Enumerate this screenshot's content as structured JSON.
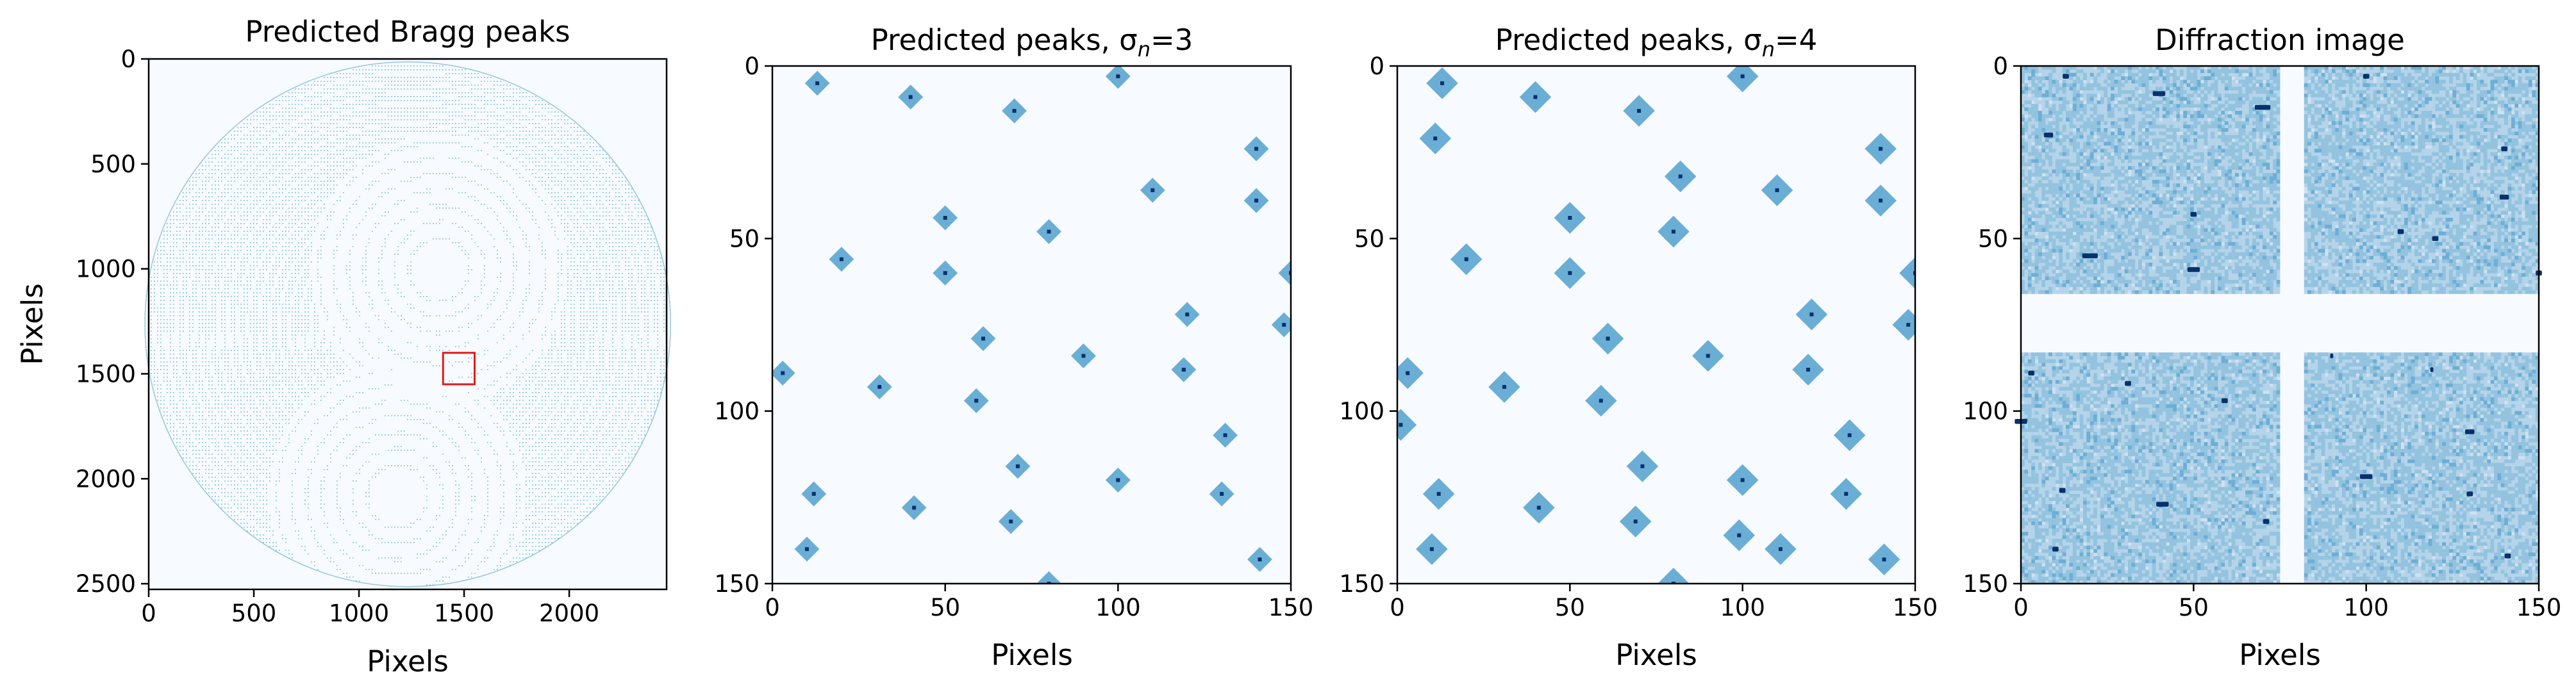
{
  "figure": {
    "background_color": "#f7fbff",
    "colormap": "Blues",
    "panel_fill": "#f7fbff",
    "peak_fill": "#6aaed6",
    "peak_center": "#08306b",
    "roi_color": "#e31a1c"
  },
  "chart_data": [
    {
      "type": "scatter",
      "title": "Predicted Bragg peaks",
      "xlabel": "Pixels",
      "ylabel": "Pixels",
      "xlim": [
        0,
        2463
      ],
      "ylim": [
        2527,
        0
      ],
      "xticks": [
        0,
        500,
        1000,
        1500,
        2000
      ],
      "yticks": [
        0,
        500,
        1000,
        1500,
        2000,
        2500
      ],
      "xtick_labels": [
        "0",
        "500",
        "1000",
        "1500",
        "2000"
      ],
      "ytick_labels": [
        "0",
        "500",
        "1000",
        "1500",
        "2000",
        "2500"
      ],
      "detector_circle": {
        "cx": 1232,
        "cy": 1264,
        "r": 1250
      },
      "ring_centers": [
        {
          "x": 1380,
          "y": 1000
        },
        {
          "x": 1180,
          "y": 2080
        }
      ],
      "highlight_box": {
        "x": [
          1400,
          1550
        ],
        "y": [
          1400,
          1550
        ]
      }
    },
    {
      "type": "heatmap",
      "title": "Predicted peaks, σ",
      "title_sub": "n",
      "title_suffix": "=3",
      "xlabel": "Pixels",
      "ylabel": "",
      "xlim": [
        0,
        150
      ],
      "ylim": [
        150,
        0
      ],
      "xticks": [
        0,
        50,
        100,
        150
      ],
      "yticks": [
        0,
        50,
        100,
        150
      ],
      "xtick_labels": [
        "0",
        "50",
        "100",
        "150"
      ],
      "ytick_labels": [
        "0",
        "50",
        "100",
        "150"
      ],
      "sigma_n": 3,
      "peaks": [
        [
          13,
          5
        ],
        [
          40,
          9
        ],
        [
          70,
          13
        ],
        [
          100,
          3
        ],
        [
          140,
          24
        ],
        [
          50,
          44
        ],
        [
          80,
          48
        ],
        [
          110,
          36
        ],
        [
          140,
          39
        ],
        [
          20,
          56
        ],
        [
          50,
          60
        ],
        [
          120,
          72
        ],
        [
          150,
          60
        ],
        [
          61,
          79
        ],
        [
          90,
          84
        ],
        [
          148,
          75
        ],
        [
          3,
          89
        ],
        [
          31,
          93
        ],
        [
          59,
          97
        ],
        [
          119,
          88
        ],
        [
          131,
          107
        ],
        [
          71,
          116
        ],
        [
          100,
          120
        ],
        [
          12,
          124
        ],
        [
          41,
          128
        ],
        [
          69,
          132
        ],
        [
          130,
          124
        ],
        [
          10,
          140
        ],
        [
          141,
          143
        ],
        [
          80,
          150
        ]
      ]
    },
    {
      "type": "heatmap",
      "title": "Predicted peaks, σ",
      "title_sub": "n",
      "title_suffix": "=4",
      "xlabel": "Pixels",
      "ylabel": "",
      "xlim": [
        0,
        150
      ],
      "ylim": [
        150,
        0
      ],
      "xticks": [
        0,
        50,
        100,
        150
      ],
      "yticks": [
        0,
        50,
        100,
        150
      ],
      "xtick_labels": [
        "0",
        "50",
        "100",
        "150"
      ],
      "ytick_labels": [
        "0",
        "50",
        "100",
        "150"
      ],
      "sigma_n": 4,
      "peaks": [
        [
          13,
          5
        ],
        [
          40,
          9
        ],
        [
          70,
          13
        ],
        [
          100,
          3
        ],
        [
          140,
          24
        ],
        [
          11,
          21
        ],
        [
          50,
          44
        ],
        [
          80,
          48
        ],
        [
          110,
          36
        ],
        [
          140,
          39
        ],
        [
          82,
          32
        ],
        [
          20,
          56
        ],
        [
          50,
          60
        ],
        [
          120,
          72
        ],
        [
          150,
          60
        ],
        [
          61,
          79
        ],
        [
          90,
          84
        ],
        [
          148,
          75
        ],
        [
          3,
          89
        ],
        [
          31,
          93
        ],
        [
          59,
          97
        ],
        [
          119,
          88
        ],
        [
          131,
          107
        ],
        [
          1,
          104
        ],
        [
          71,
          116
        ],
        [
          100,
          120
        ],
        [
          12,
          124
        ],
        [
          41,
          128
        ],
        [
          69,
          132
        ],
        [
          130,
          124
        ],
        [
          10,
          140
        ],
        [
          141,
          143
        ],
        [
          99,
          136
        ],
        [
          111,
          140
        ],
        [
          80,
          150
        ]
      ]
    },
    {
      "type": "heatmap",
      "title": "Diffraction image",
      "xlabel": "Pixels",
      "ylabel": "",
      "xlim": [
        0,
        150
      ],
      "ylim": [
        150,
        0
      ],
      "xticks": [
        0,
        50,
        100,
        150
      ],
      "yticks": [
        0,
        50,
        100,
        150
      ],
      "xtick_labels": [
        "0",
        "50",
        "100",
        "150"
      ],
      "ytick_labels": [
        "0",
        "50",
        "100",
        "150"
      ],
      "gaps": {
        "vertical": [
          75,
          82
        ],
        "horizontal": [
          66,
          83
        ]
      },
      "bright_spots": [
        [
          13,
          3,
          2
        ],
        [
          40,
          8,
          4
        ],
        [
          70,
          12,
          5
        ],
        [
          100,
          3,
          2
        ],
        [
          140,
          24,
          2
        ],
        [
          50,
          43,
          2
        ],
        [
          20,
          55,
          5
        ],
        [
          50,
          59,
          4
        ],
        [
          8,
          20,
          3
        ],
        [
          120,
          50,
          2
        ],
        [
          140,
          38,
          3
        ],
        [
          110,
          48,
          2
        ],
        [
          150,
          60,
          2
        ],
        [
          3,
          89,
          2
        ],
        [
          59,
          97,
          2
        ],
        [
          31,
          92,
          2
        ],
        [
          130,
          106,
          3
        ],
        [
          100,
          119,
          4
        ],
        [
          41,
          127,
          4
        ],
        [
          12,
          123,
          2
        ],
        [
          10,
          140,
          2
        ],
        [
          71,
          132,
          2
        ],
        [
          90,
          84,
          1
        ],
        [
          130,
          124,
          2
        ],
        [
          141,
          142,
          2
        ],
        [
          0,
          103,
          4
        ],
        [
          119,
          88,
          1
        ]
      ]
    }
  ]
}
